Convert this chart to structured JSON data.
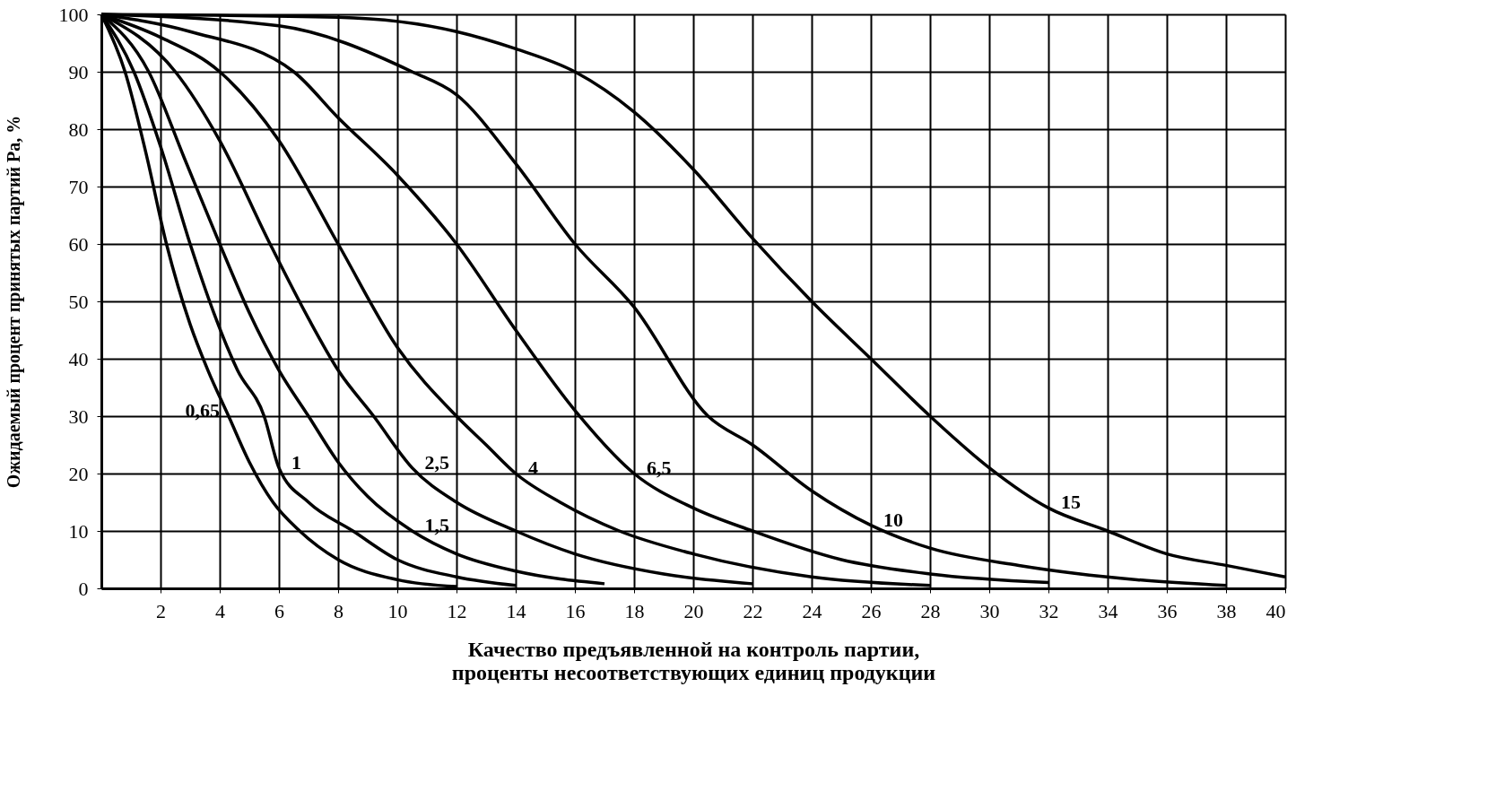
{
  "chart_data": {
    "type": "line",
    "xlabel": "Качество предъявленной на контроль партии,\nпроценты несоответствующих единиц продукции",
    "ylabel": "Ожидаемый процент принятых партий Pa, %",
    "xlim": [
      0,
      40
    ],
    "ylim": [
      0,
      100
    ],
    "xticks": [
      2,
      4,
      6,
      8,
      10,
      12,
      14,
      16,
      18,
      20,
      22,
      24,
      26,
      28,
      30,
      32,
      34,
      36,
      38,
      40
    ],
    "yticks": [
      0,
      10,
      20,
      30,
      40,
      50,
      60,
      70,
      80,
      90,
      100
    ],
    "grid": true,
    "line_style": "solid",
    "marker": "none",
    "series": [
      {
        "name": "0,65",
        "color": "#000000",
        "x": [
          0,
          0.8,
          1.5,
          2.2,
          3,
          3.6,
          4.3,
          5,
          5.8,
          6.7,
          8,
          10,
          12
        ],
        "values": [
          100,
          90,
          76,
          60,
          46,
          38,
          30,
          22,
          15,
          10,
          5,
          1.5,
          0.3
        ]
      },
      {
        "name": "1",
        "color": "#000000",
        "x": [
          0,
          1.1,
          2,
          3,
          3.8,
          4.6,
          5.5,
          6,
          7,
          8.5,
          10,
          12,
          14
        ],
        "values": [
          100,
          90,
          77,
          60,
          48,
          38,
          30,
          21,
          15,
          10,
          5,
          2,
          0.5
        ]
      },
      {
        "name": "1,5",
        "color": "#000000",
        "x": [
          0,
          1.6,
          2.8,
          4,
          5,
          6,
          7,
          8,
          9,
          10.5,
          12,
          14,
          17
        ],
        "values": [
          100,
          90,
          75,
          60,
          48,
          38,
          30,
          22,
          16,
          10,
          6,
          3,
          0.8
        ]
      },
      {
        "name": "2,5",
        "color": "#000000",
        "x": [
          0,
          2.5,
          4,
          5.7,
          7,
          8,
          9.2,
          10.5,
          12,
          14,
          16,
          19,
          22
        ],
        "values": [
          100,
          90,
          78,
          60,
          47,
          38,
          30,
          21,
          15,
          10,
          6,
          2.5,
          0.8
        ]
      },
      {
        "name": "4",
        "color": "#000000",
        "x": [
          0,
          2,
          4,
          6,
          8,
          10,
          12,
          13,
          14,
          15.5,
          17.5,
          20,
          24,
          28
        ],
        "values": [
          100,
          96,
          90,
          78,
          60,
          42,
          30,
          25,
          20,
          15,
          10,
          6,
          2,
          0.5
        ]
      },
      {
        "name": "6,5",
        "color": "#000000",
        "x": [
          0,
          3,
          6.5,
          8,
          10,
          12,
          14,
          16,
          18,
          20,
          22,
          25,
          28,
          32
        ],
        "values": [
          100,
          97,
          90,
          82,
          72,
          60,
          45,
          31,
          20,
          14,
          10,
          5,
          2.5,
          1
        ]
      },
      {
        "name": "10",
        "color": "#000000",
        "x": [
          0,
          6,
          10.5,
          12,
          14,
          16,
          18,
          20.5,
          22,
          24,
          26,
          28,
          31,
          35,
          38
        ],
        "values": [
          100,
          98,
          90,
          86,
          74,
          60,
          49,
          30,
          25,
          17,
          11,
          7,
          4,
          1.5,
          0.5
        ]
      },
      {
        "name": "15",
        "color": "#000000",
        "x": [
          0,
          8,
          12,
          14,
          16,
          18,
          20,
          22,
          24,
          26,
          28,
          30,
          32,
          34,
          36,
          38,
          40
        ],
        "values": [
          100,
          99.5,
          97,
          94,
          90,
          83,
          73,
          61,
          50,
          40,
          30,
          21,
          14,
          10,
          6,
          4,
          2
        ]
      }
    ]
  }
}
